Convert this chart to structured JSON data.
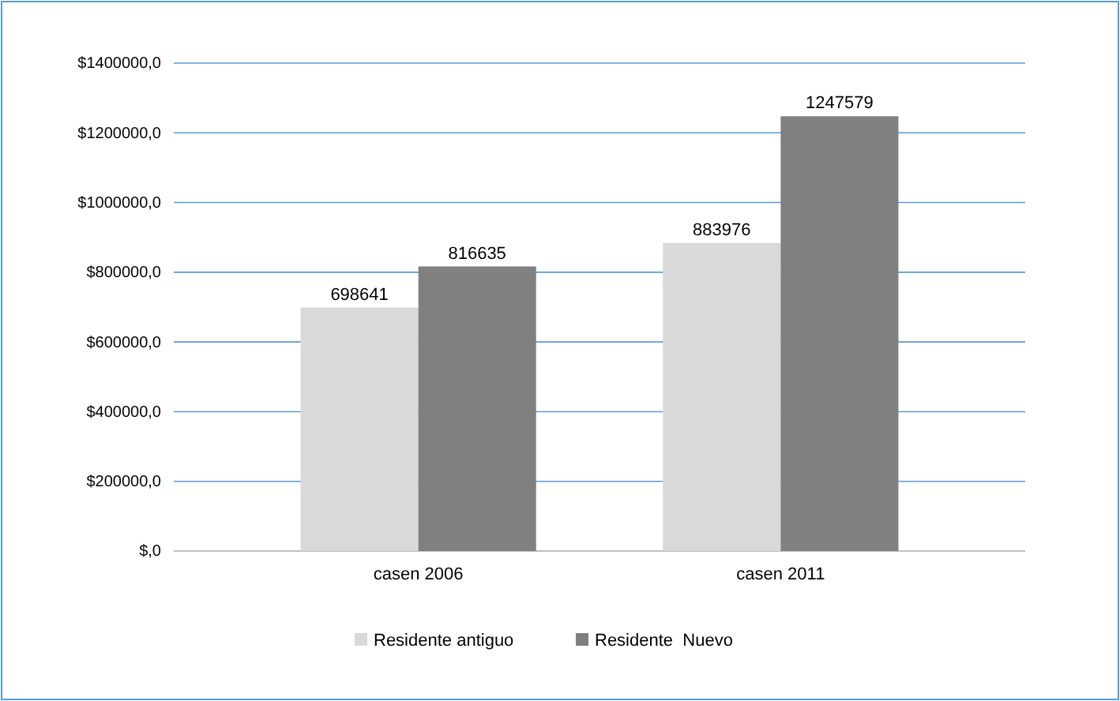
{
  "chart_data": {
    "type": "bar",
    "categories": [
      "casen 2006",
      "casen 2011"
    ],
    "series": [
      {
        "name": "Residente antiguo",
        "color": "#d9d9d9",
        "values": [
          698641,
          883976
        ]
      },
      {
        "name": "Residente  Nuevo",
        "color": "#808080",
        "values": [
          816635,
          1247579
        ]
      }
    ],
    "ylim": [
      0,
      1400000
    ],
    "yticks": [
      {
        "value": 0,
        "label": "$,0"
      },
      {
        "value": 200000,
        "label": "$200000,0"
      },
      {
        "value": 400000,
        "label": "$400000,0"
      },
      {
        "value": 600000,
        "label": "$600000,0"
      },
      {
        "value": 800000,
        "label": "$800000,0"
      },
      {
        "value": 1000000,
        "label": "$1000000,0"
      },
      {
        "value": 1200000,
        "label": "$1200000,0"
      },
      {
        "value": 1400000,
        "label": "$1400000,0"
      }
    ],
    "grid": "y",
    "data_labels": true,
    "legend": "bottom"
  }
}
